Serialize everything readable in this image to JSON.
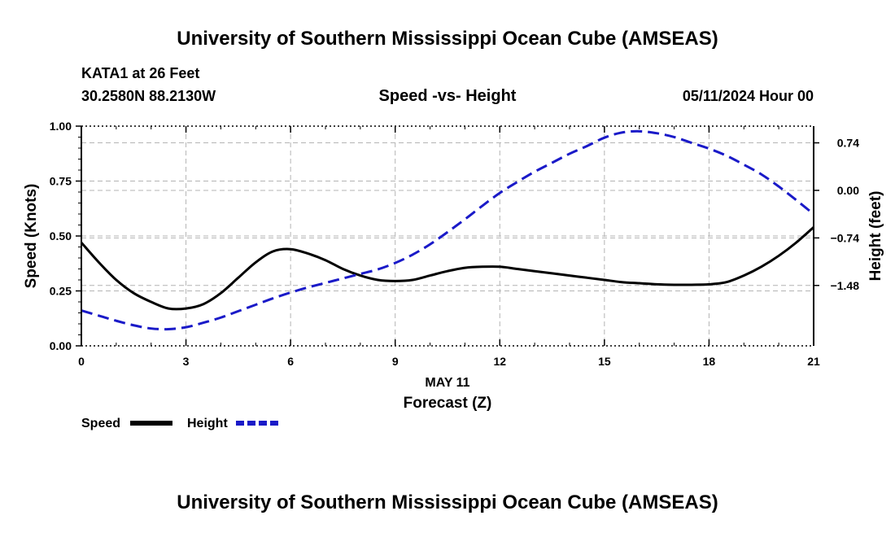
{
  "header": {
    "title": "University of Southern Mississippi Ocean Cube (AMSEAS)",
    "station": "KATA1 at 26 Feet",
    "location": "30.2580N  88.2130W",
    "date": "05/11/2024 Hour 00"
  },
  "footer": {
    "title": "University of Southern Mississippi Ocean Cube (AMSEAS)"
  },
  "chart_data": {
    "type": "line",
    "title": "Speed -vs- Height",
    "xlabel": "Forecast (Z)",
    "xdate_label": "MAY 11",
    "ylabel": "Speed (Knots)",
    "y2label": "Height (feet)",
    "xlim": [
      0,
      21
    ],
    "ylim": [
      0,
      1
    ],
    "y2lim": [
      -2.42,
      1.0
    ],
    "xticks": [
      0,
      3,
      6,
      9,
      12,
      15,
      18,
      21
    ],
    "xtick_labels": [
      "0",
      "3",
      "6",
      "9",
      "12",
      "15",
      "18",
      "21"
    ],
    "yticks": [
      0,
      0.25,
      0.5,
      0.75,
      1.0
    ],
    "ytick_labels": [
      "0.00",
      "0.25",
      "0.50",
      "0.75",
      "1.00"
    ],
    "y2ticks": [
      0.74,
      0.0,
      -0.74,
      -1.48
    ],
    "y2tick_labels": [
      "0.74",
      "0.00",
      "−0.74",
      "−1.48"
    ],
    "grid": true,
    "legend_position": "bottom-left",
    "series": [
      {
        "name": "Speed",
        "axis": "left",
        "color": "#000000",
        "style": "solid",
        "x": [
          0,
          0.5,
          1,
          1.5,
          2,
          2.5,
          3,
          3.5,
          4,
          4.5,
          5,
          5.5,
          6,
          6.5,
          7,
          7.5,
          8,
          8.5,
          9,
          9.5,
          10,
          10.5,
          11,
          11.5,
          12,
          12.5,
          13,
          13.5,
          14,
          14.5,
          15,
          15.5,
          16,
          16.5,
          17,
          17.5,
          18,
          18.5,
          19,
          19.5,
          20,
          20.5,
          21
        ],
        "values": [
          0.47,
          0.38,
          0.3,
          0.24,
          0.2,
          0.17,
          0.17,
          0.19,
          0.24,
          0.31,
          0.38,
          0.43,
          0.44,
          0.42,
          0.39,
          0.35,
          0.32,
          0.3,
          0.295,
          0.3,
          0.32,
          0.34,
          0.355,
          0.36,
          0.36,
          0.35,
          0.34,
          0.33,
          0.32,
          0.31,
          0.3,
          0.29,
          0.285,
          0.28,
          0.278,
          0.278,
          0.28,
          0.29,
          0.32,
          0.36,
          0.41,
          0.47,
          0.54
        ]
      },
      {
        "name": "Height",
        "axis": "right",
        "color": "#1a1ac8",
        "style": "dashed",
        "x": [
          0,
          0.5,
          1,
          1.5,
          2,
          2.5,
          3,
          3.5,
          4,
          4.5,
          5,
          5.5,
          6,
          6.5,
          7,
          7.5,
          8,
          8.5,
          9,
          9.5,
          10,
          10.5,
          11,
          11.5,
          12,
          12.5,
          13,
          13.5,
          14,
          14.5,
          15,
          15.5,
          16,
          16.5,
          17,
          17.5,
          18,
          18.5,
          19,
          19.5,
          20,
          20.5,
          21
        ],
        "values": [
          -1.87,
          -1.95,
          -2.03,
          -2.1,
          -2.15,
          -2.16,
          -2.13,
          -2.06,
          -1.98,
          -1.88,
          -1.78,
          -1.68,
          -1.59,
          -1.51,
          -1.44,
          -1.37,
          -1.3,
          -1.23,
          -1.13,
          -1.0,
          -0.84,
          -0.65,
          -0.45,
          -0.24,
          -0.04,
          0.13,
          0.29,
          0.43,
          0.57,
          0.69,
          0.82,
          0.9,
          0.92,
          0.89,
          0.83,
          0.74,
          0.65,
          0.54,
          0.4,
          0.25,
          0.06,
          -0.15,
          -0.37
        ]
      }
    ]
  }
}
